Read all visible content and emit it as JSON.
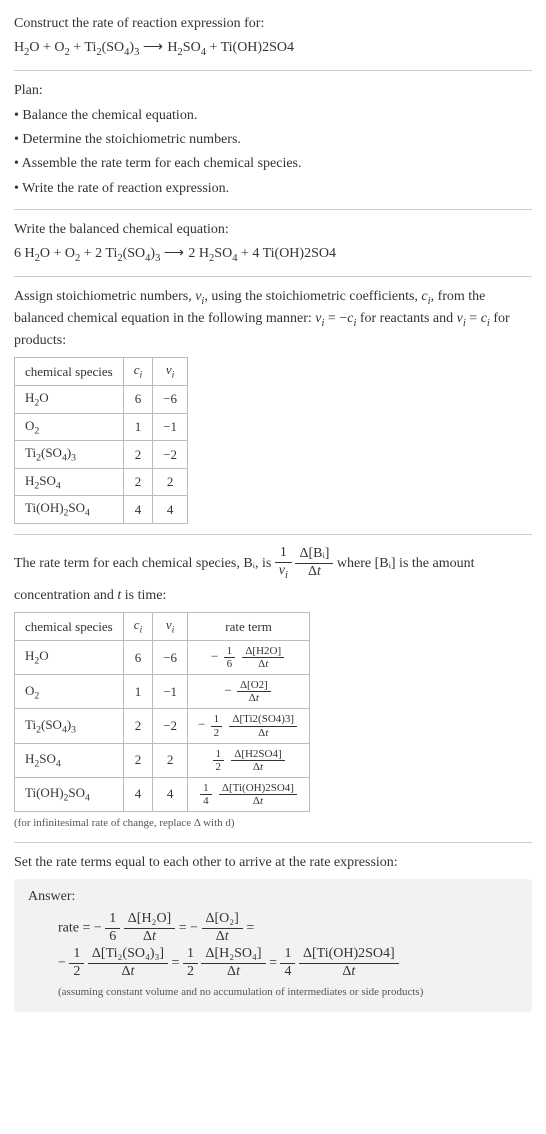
{
  "intro": {
    "line1": "Construct the rate of reaction expression for:",
    "equationText": "H₂O + O₂ + Ti₂(SO₄)₃ ⟶ H₂SO₄ + Ti(OH)2SO4"
  },
  "plan": {
    "header": "Plan:",
    "b1": "• Balance the chemical equation.",
    "b2": "• Determine the stoichiometric numbers.",
    "b3": "• Assemble the rate term for each chemical species.",
    "b4": "• Write the rate of reaction expression."
  },
  "balanced": {
    "lead": "Write the balanced chemical equation:",
    "equationText": "6 H₂O + O₂ + 2 Ti₂(SO₄)₃ ⟶ 2 H₂SO₄ + 4 Ti(OH)2SO4"
  },
  "stoich": {
    "para": "Assign stoichiometric numbers, νᵢ, using the stoichiometric coefficients, cᵢ, from the balanced chemical equation in the following manner: νᵢ = −cᵢ for reactants and νᵢ = cᵢ for products:",
    "headers": {
      "h1": "chemical species",
      "h2": "cᵢ",
      "h3": "νᵢ"
    },
    "rows": [
      {
        "sp": "H₂O",
        "c": "6",
        "v": "−6"
      },
      {
        "sp": "O₂",
        "c": "1",
        "v": "−1"
      },
      {
        "sp": "Ti₂(SO₄)₃",
        "c": "2",
        "v": "−2"
      },
      {
        "sp": "H₂SO₄",
        "c": "2",
        "v": "2"
      },
      {
        "sp": "Ti(OH)₂SO₄",
        "c": "4",
        "v": "4"
      }
    ]
  },
  "rateDef": {
    "before": "The rate term for each chemical species, Bᵢ, is ",
    "topnum": "1",
    "topden": "νᵢ",
    "dnum": "Δ[Bᵢ]",
    "dden": "Δt",
    "after1": " where [Bᵢ] is the amount",
    "after2": "concentration and t is time:"
  },
  "rateTable": {
    "headers": {
      "h1": "chemical species",
      "h2": "cᵢ",
      "h3": "νᵢ",
      "h4": "rate term"
    },
    "rows": [
      {
        "sp": "H₂O",
        "c": "6",
        "v": "−6",
        "sign": "−",
        "a": "1",
        "b": "6",
        "dnum": "Δ[H2O]",
        "dden": "Δt"
      },
      {
        "sp": "O₂",
        "c": "1",
        "v": "−1",
        "sign": "−",
        "a": "",
        "b": "",
        "dnum": "Δ[O2]",
        "dden": "Δt"
      },
      {
        "sp": "Ti₂(SO₄)₃",
        "c": "2",
        "v": "−2",
        "sign": "−",
        "a": "1",
        "b": "2",
        "dnum": "Δ[Ti2(SO4)3]",
        "dden": "Δt"
      },
      {
        "sp": "H₂SO₄",
        "c": "2",
        "v": "2",
        "sign": "",
        "a": "1",
        "b": "2",
        "dnum": "Δ[H2SO4]",
        "dden": "Δt"
      },
      {
        "sp": "Ti(OH)₂SO₄",
        "c": "4",
        "v": "4",
        "sign": "",
        "a": "1",
        "b": "4",
        "dnum": "Δ[Ti(OH)2SO4]",
        "dden": "Δt"
      }
    ],
    "note": "(for infinitesimal rate of change, replace Δ with d)"
  },
  "final": {
    "lead": "Set the rate terms equal to each other to arrive at the rate expression:",
    "answerHdr": "Answer:",
    "l1_pre": "rate = − ",
    "f1a": "1",
    "f1b": "6",
    "f1n": "Δ[H₂O]",
    "f1d": "Δt",
    "eq1": " = − ",
    "f2n": "Δ[O₂]",
    "f2d": "Δt",
    "eq2": " =",
    "l2_pre": "− ",
    "f3a": "1",
    "f3b": "2",
    "f3n": "Δ[Ti₂(SO₄)₃]",
    "f3d": "Δt",
    "eq3": " = ",
    "f4a": "1",
    "f4b": "2",
    "f4n": "Δ[H₂SO₄]",
    "f4d": "Δt",
    "eq4": " = ",
    "f5a": "1",
    "f5b": "4",
    "f5n": "Δ[Ti(OH)2SO4]",
    "f5d": "Δt",
    "footnote": "(assuming constant volume and no accumulation of intermediates or side products)"
  }
}
